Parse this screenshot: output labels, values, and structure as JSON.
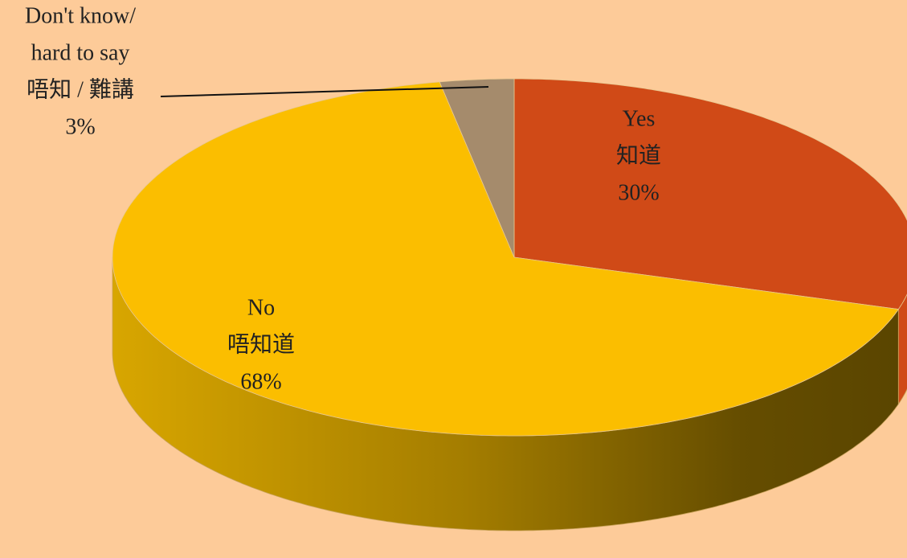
{
  "chart_data": {
    "type": "pie",
    "categories": [
      [
        "Yes",
        "知道"
      ],
      [
        "No",
        "唔知道"
      ],
      [
        "Don't know/",
        "hard to say",
        "唔知 / 難講"
      ]
    ],
    "values": [
      30,
      68,
      3
    ],
    "value_labels": [
      "30%",
      "68%",
      "3%"
    ],
    "colors": [
      "#d04a17",
      "#fbbe00",
      "#a58b6c"
    ]
  }
}
